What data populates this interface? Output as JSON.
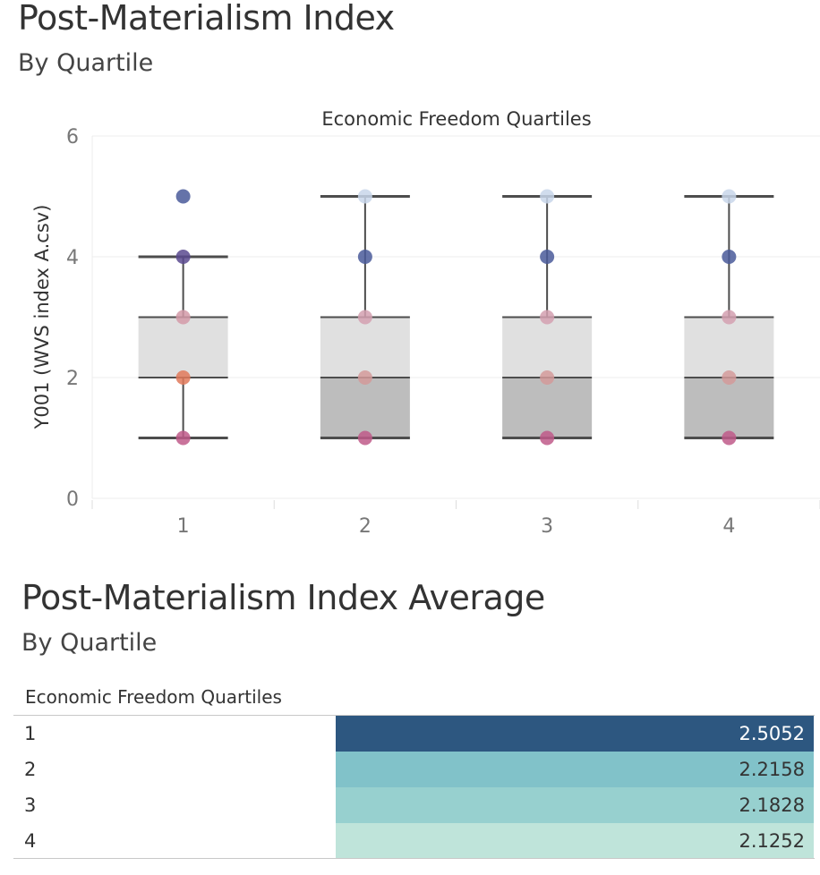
{
  "header": {
    "title": "Post-Materialism Index",
    "subtitle": "By Quartile"
  },
  "chart_data": {
    "type": "box",
    "title": "Economic Freedom Quartiles",
    "xlabel": "",
    "ylabel": "Y001 (WVS index A.csv)",
    "categories": [
      "1",
      "2",
      "3",
      "4"
    ],
    "ylim": [
      0,
      6
    ],
    "yticks": [
      "0",
      "2",
      "4",
      "6"
    ],
    "grid": true,
    "boxes": [
      {
        "category": "1",
        "lower_whisker": 1,
        "q1": 2,
        "median": 2,
        "q3": 3,
        "upper_whisker": 4
      },
      {
        "category": "2",
        "lower_whisker": 1,
        "q1": 1,
        "median": 2,
        "q3": 3,
        "upper_whisker": 5
      },
      {
        "category": "3",
        "lower_whisker": 1,
        "q1": 1,
        "median": 2,
        "q3": 3,
        "upper_whisker": 5
      },
      {
        "category": "4",
        "lower_whisker": 1,
        "q1": 1,
        "median": 2,
        "q3": 3,
        "upper_whisker": 5
      }
    ],
    "points": [
      {
        "category": "1",
        "y": 1,
        "color": "#c05a8a"
      },
      {
        "category": "1",
        "y": 2,
        "color": "#e0795a"
      },
      {
        "category": "1",
        "y": 3,
        "color": "#d49aa8"
      },
      {
        "category": "1",
        "y": 4,
        "color": "#5a4a8f"
      },
      {
        "category": "1",
        "y": 5,
        "color": "#4a5a9a"
      },
      {
        "category": "2",
        "y": 1,
        "color": "#c05a8a"
      },
      {
        "category": "2",
        "y": 2,
        "color": "#d49a9a"
      },
      {
        "category": "2",
        "y": 3,
        "color": "#d4a0b0"
      },
      {
        "category": "2",
        "y": 4,
        "color": "#4a5a9a"
      },
      {
        "category": "2",
        "y": 5,
        "color": "#c8d6ea"
      },
      {
        "category": "3",
        "y": 1,
        "color": "#c05a8a"
      },
      {
        "category": "3",
        "y": 2,
        "color": "#d49a9a"
      },
      {
        "category": "3",
        "y": 3,
        "color": "#d4a0b0"
      },
      {
        "category": "3",
        "y": 4,
        "color": "#4a5a9a"
      },
      {
        "category": "3",
        "y": 5,
        "color": "#c8d6ea"
      },
      {
        "category": "4",
        "y": 1,
        "color": "#c05a8a"
      },
      {
        "category": "4",
        "y": 2,
        "color": "#d49a9a"
      },
      {
        "category": "4",
        "y": 3,
        "color": "#d4a0b0"
      },
      {
        "category": "4",
        "y": 4,
        "color": "#4a5a9a"
      },
      {
        "category": "4",
        "y": 5,
        "color": "#c8d6ea"
      }
    ],
    "colors": {
      "upper_box": "#e0e0e0",
      "lower_box": "#bdbdbd",
      "whisker": "#4d4d4d",
      "grid": "#ececec"
    }
  },
  "table_section": {
    "title": "Post-Materialism Index Average",
    "subtitle": "By Quartile",
    "column_header": "Economic Freedom Quartiles",
    "rows": [
      {
        "label": "1",
        "value": "2.5052",
        "color": "#2d5780",
        "text_color": "#ffffff"
      },
      {
        "label": "2",
        "value": "2.2158",
        "color": "#81c2c9",
        "text_color": "#333333"
      },
      {
        "label": "3",
        "value": "2.1828",
        "color": "#97d0cf",
        "text_color": "#333333"
      },
      {
        "label": "4",
        "value": "2.1252",
        "color": "#bfe4da",
        "text_color": "#333333"
      }
    ]
  }
}
